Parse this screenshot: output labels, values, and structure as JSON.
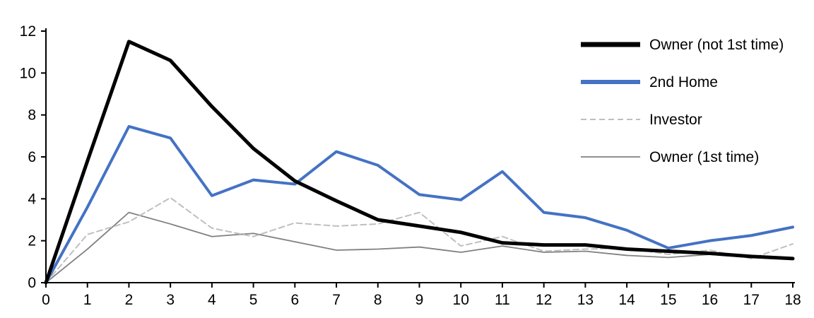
{
  "chart_data": {
    "type": "line",
    "title": "",
    "xlabel": "",
    "ylabel": "",
    "grid": false,
    "legend_position": "top-right",
    "axis_color": "#000000",
    "tick_label_color": "#000000",
    "xlim": [
      0,
      18
    ],
    "ylim": [
      0,
      12
    ],
    "xticks": [
      0,
      1,
      2,
      3,
      4,
      5,
      6,
      7,
      8,
      9,
      10,
      11,
      12,
      13,
      14,
      15,
      16,
      17,
      18
    ],
    "yticks": [
      0,
      2,
      4,
      6,
      8,
      10,
      12
    ],
    "x": [
      0,
      1,
      2,
      3,
      4,
      5,
      6,
      7,
      8,
      9,
      10,
      11,
      12,
      13,
      14,
      15,
      16,
      17,
      18
    ],
    "series": [
      {
        "name": "Owner (not 1st time)",
        "color": "#000000",
        "stroke_width": 5,
        "dash": null,
        "values": [
          0,
          5.8,
          11.5,
          10.6,
          8.4,
          6.4,
          4.85,
          3.9,
          3.0,
          2.7,
          2.4,
          1.9,
          1.8,
          1.8,
          1.6,
          1.5,
          1.4,
          1.25,
          1.15
        ]
      },
      {
        "name": "2nd Home",
        "color": "#4472C4",
        "stroke_width": 4,
        "dash": null,
        "values": [
          0,
          3.6,
          7.45,
          6.9,
          4.15,
          4.9,
          4.7,
          6.25,
          5.6,
          4.2,
          3.95,
          5.3,
          3.35,
          3.1,
          2.5,
          1.65,
          2.0,
          2.25,
          2.65
        ]
      },
      {
        "name": "Investor",
        "color": "#BFBFBF",
        "stroke_width": 2,
        "dash": "8,5",
        "values": [
          0,
          2.3,
          2.9,
          4.05,
          2.6,
          2.2,
          2.85,
          2.7,
          2.8,
          3.35,
          1.75,
          2.2,
          1.5,
          1.6,
          1.65,
          1.35,
          1.55,
          1.15,
          1.85
        ]
      },
      {
        "name": "Owner (1st time)",
        "color": "#808080",
        "stroke_width": 1.8,
        "dash": null,
        "values": [
          0,
          1.6,
          3.35,
          2.8,
          2.2,
          2.35,
          1.95,
          1.55,
          1.6,
          1.7,
          1.45,
          1.75,
          1.45,
          1.5,
          1.3,
          1.2,
          1.35,
          1.2,
          1.15
        ]
      }
    ]
  }
}
